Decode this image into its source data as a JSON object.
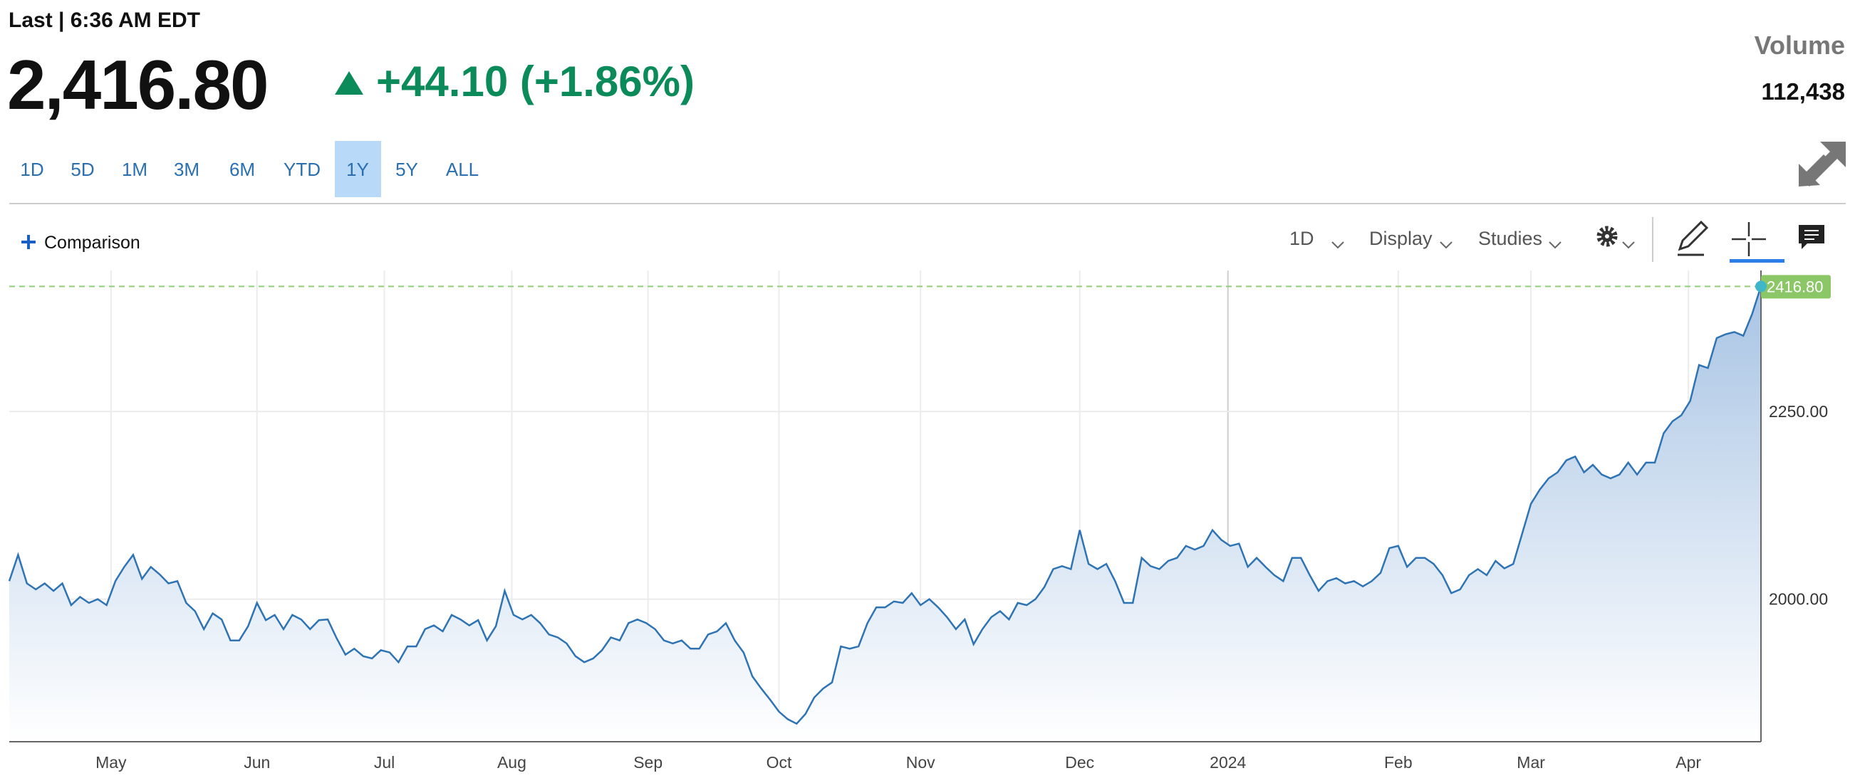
{
  "header": {
    "last": "Last | 6:36 AM EDT",
    "price": "2,416.80",
    "change": "+44.10 (+1.86%)",
    "volume_label": "Volume",
    "volume": "112,438"
  },
  "ranges": {
    "items": [
      "1D",
      "5D",
      "1M",
      "3M",
      "6M",
      "YTD",
      "1Y",
      "5Y",
      "ALL"
    ],
    "active": 6
  },
  "toolbar": {
    "comparison": "Comparison",
    "interval": "1D",
    "display": "Display",
    "studies": "Studies"
  },
  "chart_data": {
    "type": "area",
    "color": "#2e74b5",
    "grid": true,
    "values": [
      2024,
      2059,
      2021,
      2013,
      2021,
      2011,
      2021,
      1992,
      2003,
      1995,
      2000,
      1992,
      2024,
      2043,
      2059,
      2027,
      2043,
      2033,
      2021,
      2024,
      1995,
      1984,
      1960,
      1981,
      1973,
      1945,
      1945,
      1964,
      1995,
      1972,
      1979,
      1960,
      1979,
      1973,
      1960,
      1972,
      1973,
      1948,
      1926,
      1934,
      1924,
      1921,
      1932,
      1929,
      1916,
      1937,
      1937,
      1960,
      1965,
      1957,
      1979,
      1973,
      1965,
      1972,
      1945,
      1964,
      2011,
      1979,
      1973,
      1979,
      1968,
      1953,
      1949,
      1941,
      1924,
      1916,
      1921,
      1932,
      1949,
      1945,
      1968,
      1973,
      1968,
      1960,
      1945,
      1941,
      1945,
      1934,
      1934,
      1953,
      1957,
      1968,
      1945,
      1929,
      1897,
      1881,
      1866,
      1850,
      1840,
      1834,
      1847,
      1869,
      1881,
      1889,
      1937,
      1934,
      1937,
      1968,
      1989,
      1989,
      1997,
      1995,
      2008,
      1992,
      2000,
      1989,
      1976,
      1960,
      1973,
      1940,
      1960,
      1976,
      1984,
      1973,
      1995,
      1992,
      2000,
      2016,
      2040,
      2044,
      2040,
      2092,
      2047,
      2040,
      2047,
      2024,
      1995,
      1995,
      2055,
      2044,
      2040,
      2051,
      2055,
      2071,
      2066,
      2071,
      2092,
      2079,
      2071,
      2074,
      2043,
      2055,
      2043,
      2032,
      2024,
      2055,
      2055,
      2032,
      2011,
      2024,
      2028,
      2021,
      2024,
      2017,
      2024,
      2035,
      2068,
      2071,
      2043,
      2055,
      2055,
      2047,
      2032,
      2008,
      2013,
      2032,
      2040,
      2032,
      2051,
      2041,
      2047,
      2087,
      2127,
      2146,
      2161,
      2169,
      2185,
      2190,
      2169,
      2179,
      2166,
      2161,
      2166,
      2182,
      2166,
      2182,
      2182,
      2221,
      2237,
      2245,
      2264,
      2312,
      2308,
      2348,
      2353,
      2356,
      2351,
      2380,
      2416.8
    ],
    "last_label": "2416.80",
    "xlim": [
      0,
      198
    ],
    "xticks": [
      {
        "value": 11.5,
        "label": "May"
      },
      {
        "value": 28,
        "label": "Jun"
      },
      {
        "value": 42.4,
        "label": "Jul"
      },
      {
        "value": 56.8,
        "label": "Aug"
      },
      {
        "value": 72.2,
        "label": "Sep"
      },
      {
        "value": 87,
        "label": "Oct"
      },
      {
        "value": 103,
        "label": "Nov"
      },
      {
        "value": 121,
        "label": "Dec"
      },
      {
        "value": 137.75,
        "label": "2024"
      },
      {
        "value": 157,
        "label": "Feb"
      },
      {
        "value": 172,
        "label": "Mar"
      },
      {
        "value": 189.8,
        "label": "Apr"
      }
    ],
    "ylim": [
      1810,
      2438
    ],
    "yticks": [
      {
        "value": 2000,
        "label": "2000.00"
      },
      {
        "value": 2250,
        "label": "2250.00"
      }
    ]
  }
}
